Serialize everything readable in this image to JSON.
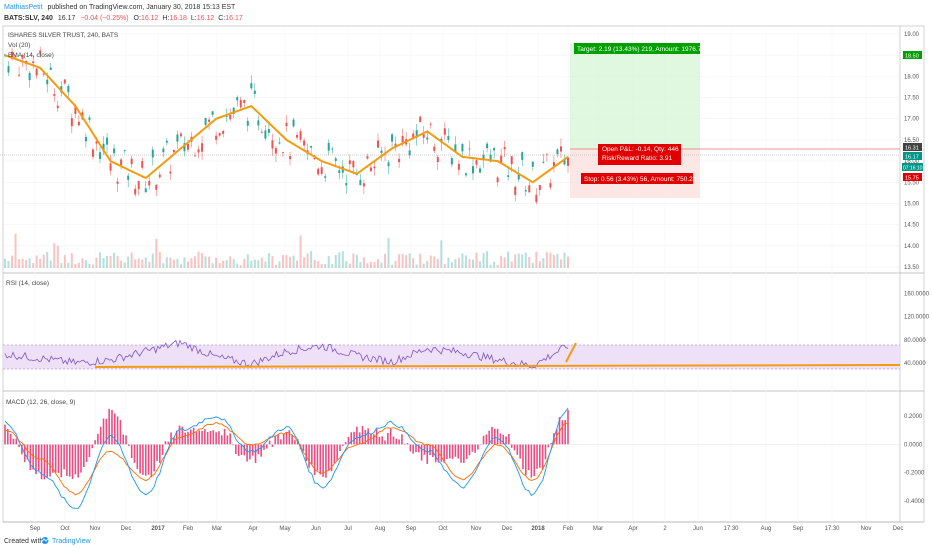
{
  "header": {
    "author": "MathiasPetit",
    "published": "published on TradingView.com, January 30, 2018 15:13 EST",
    "symbol": "BATS:SLV, 240",
    "last": "16.17",
    "change": "−0.04 (−0.25%)",
    "open_label": "O:",
    "open": "16.12",
    "high_label": "H:",
    "high": "16.18",
    "low_label": "L:",
    "low": "16.12",
    "close_label": "C:",
    "close": "16.17"
  },
  "price_pane": {
    "title": "ISHARES SILVER TRUST, 240, BATS",
    "vol_label": "Vol (20)",
    "ema_label": "EMA (14, close)",
    "ticks": [
      "19.00",
      "18.50",
      "18.00",
      "17.50",
      "17.00",
      "16.50",
      "16.00",
      "15.50",
      "15.00",
      "14.50",
      "14.00",
      "13.50"
    ],
    "badges": {
      "target": "18.50",
      "open": "16.31",
      "current": "16.17",
      "time": "07:16:10",
      "stop": "15.75"
    },
    "target_label": "Target: 2.19 (13.43%) 219, Amount: 1976.74",
    "pnl_label": "Open P&L: -0.14, Qty: 446",
    "rr_label": "Risk/Reward Ratio: 3.91",
    "stop_label": "Stop: 0.56 (3.43%) 56, Amount: 750.24"
  },
  "rsi_pane": {
    "title": "RSI (14, close)",
    "ticks": [
      "160.0000",
      "120.0000",
      "80.0000",
      "40.0000"
    ]
  },
  "macd_pane": {
    "title": "MACD (12, 26, close, 9)",
    "ticks": [
      "0.2000",
      "0.0000",
      "-0.2000",
      "-0.4000"
    ]
  },
  "time_axis": [
    "Sep",
    "Oct",
    "Nov",
    "Dec",
    "2017",
    "Feb",
    "Mar",
    "Apr",
    "May",
    "Jun",
    "Jul",
    "Aug",
    "Sep",
    "Oct",
    "Nov",
    "Dec",
    "2018",
    "Feb",
    "Mar",
    "Apr",
    "2",
    "Jun",
    "17:30",
    "Aug",
    "Sep",
    "17:30",
    "Nov",
    "Dec"
  ],
  "footer": {
    "created": "Created with",
    "brand": "TradingView"
  },
  "colors": {
    "up": "#26a69a",
    "down": "#ef5350",
    "ema": "#f39c12",
    "rsi": "#7e57c2",
    "macd": "#2196f3",
    "signal": "#ff6d00",
    "hist": "#e91e63",
    "profit": "#00a000",
    "loss": "#e00000"
  },
  "chart_data": [
    {
      "type": "line",
      "title": "ISHARES SILVER TRUST, 240, BATS",
      "series": [
        {
          "name": "EMA (14, close)",
          "x": [
            "Sep",
            "Oct",
            "Nov",
            "Dec",
            "2017",
            "Feb",
            "Mar",
            "Apr",
            "May",
            "Jun",
            "Jul",
            "Aug",
            "Sep",
            "Oct",
            "Nov",
            "Dec",
            "2018"
          ],
          "values": [
            18.5,
            18.2,
            17.3,
            16.0,
            15.6,
            16.3,
            17.0,
            17.3,
            16.5,
            16.0,
            15.7,
            16.3,
            16.7,
            16.1,
            16.0,
            15.5,
            16.1
          ]
        }
      ],
      "ylim": [
        13.5,
        19.0
      ],
      "annotations": {
        "target": 18.5,
        "entry": 16.31,
        "current": 16.17,
        "stop": 15.75
      }
    },
    {
      "type": "line",
      "title": "RSI (14, close)",
      "series": [
        {
          "name": "RSI (14, close)",
          "values": [
            55,
            48,
            40,
            45,
            60,
            75,
            50,
            38,
            60,
            70,
            52,
            42,
            65,
            58,
            45,
            35,
            70
          ]
        }
      ],
      "ylim": [
        0,
        180
      ]
    },
    {
      "type": "line",
      "title": "MACD (12, 26, close, 9)",
      "series": [
        {
          "name": "MACD",
          "values": [
            0.15,
            -0.2,
            -0.45,
            0.05,
            -0.35,
            0.1,
            0.2,
            -0.05,
            0.12,
            -0.3,
            0.05,
            0.15,
            -0.05,
            -0.3,
            0.05,
            -0.35,
            0.25
          ]
        },
        {
          "name": "Signal",
          "values": [
            0.1,
            -0.1,
            -0.35,
            -0.05,
            -0.25,
            0.05,
            0.15,
            0.0,
            0.08,
            -0.2,
            0.0,
            0.12,
            0.0,
            -0.25,
            0.0,
            -0.25,
            0.15
          ]
        }
      ],
      "ylim": [
        -0.5,
        0.3
      ]
    }
  ]
}
